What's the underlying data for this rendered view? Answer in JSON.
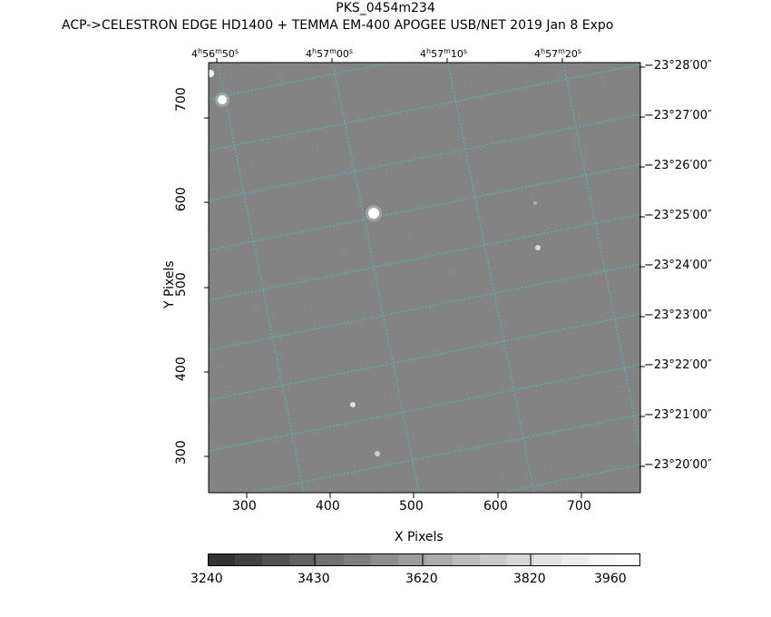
{
  "title": "PKS_0454m234",
  "subtitle": "ACP->CELESTRON EDGE HD1400 + TEMMA EM-400 APOGEE USB/NET   2019 Jan  8    Expo",
  "x_axis": {
    "label": "X Pixels",
    "ticks": [
      "300",
      "400",
      "500",
      "600",
      "700"
    ]
  },
  "y_axis": {
    "label": "Y Pixels",
    "ticks": [
      "700",
      "600",
      "500",
      "400",
      "300"
    ]
  },
  "ra_ticks": [
    {
      "h": "4",
      "m": "56",
      "s": "50"
    },
    {
      "h": "4",
      "m": "57",
      "s": "00"
    },
    {
      "h": "4",
      "m": "57",
      "s": "10"
    },
    {
      "h": "4",
      "m": "57",
      "s": "20"
    }
  ],
  "dec_ticks": [
    "−23°28′00″",
    "−23°27′00″",
    "−23°26′00″",
    "−23°25′00″",
    "−23°24′00″",
    "−23°23′00″",
    "−23°22′00″",
    "−23°21′00″",
    "−23°20′00″"
  ],
  "colorbar": {
    "ticks": [
      "3240",
      "3430",
      "3620",
      "3820",
      "3960"
    ]
  },
  "colors": {
    "grid": "#3fc8c8",
    "background": "#7e7e7e"
  }
}
